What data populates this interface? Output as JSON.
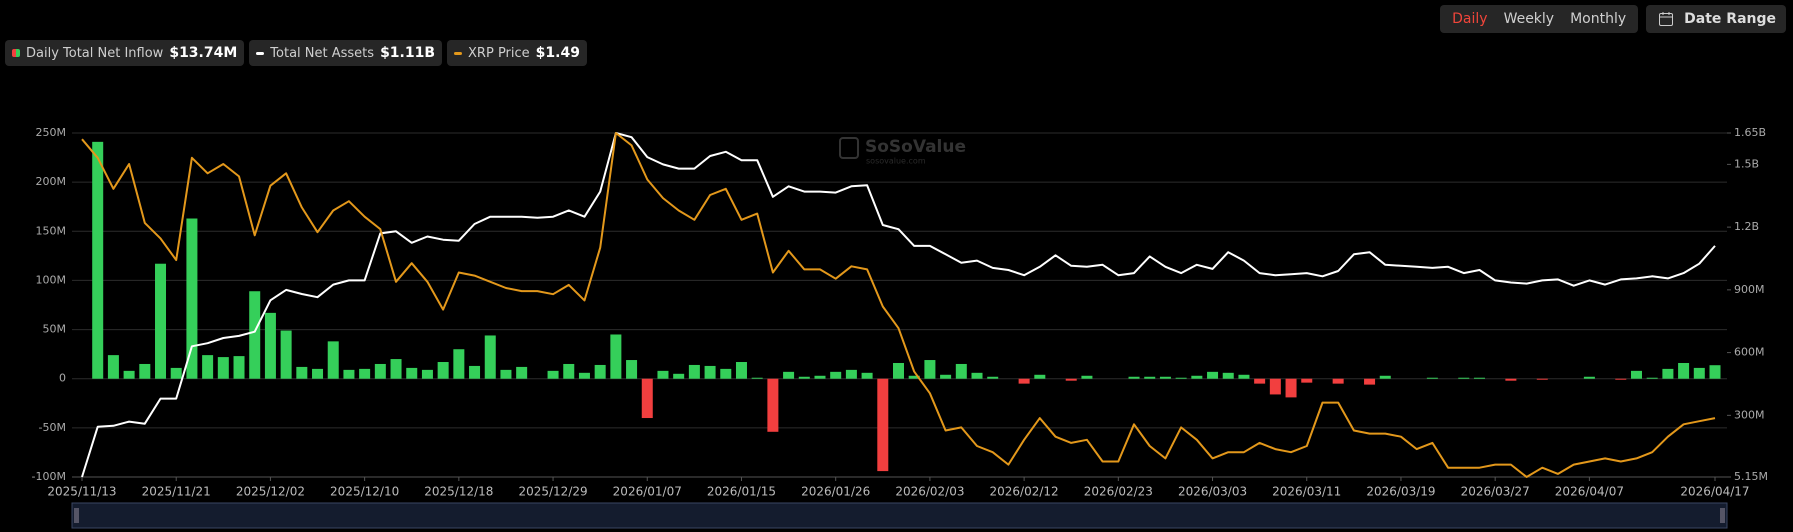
{
  "controls": {
    "periods": [
      "Daily",
      "Weekly",
      "Monthly"
    ],
    "active": "Daily",
    "date_range": "Date Range"
  },
  "chart_data": {
    "type": "combo",
    "watermark": "SoSoValue",
    "watermark_sub": "sosovalue.com",
    "categories": [
      "2025/11/13",
      null,
      null,
      null,
      null,
      null,
      "2025/11/21",
      null,
      null,
      null,
      null,
      null,
      "2025/12/02",
      null,
      null,
      null,
      null,
      null,
      "2025/12/10",
      null,
      null,
      null,
      null,
      null,
      "2025/12/18",
      null,
      null,
      null,
      null,
      null,
      "2025/12/29",
      null,
      null,
      null,
      null,
      null,
      "2026/01/07",
      null,
      null,
      null,
      null,
      null,
      "2026/01/15",
      null,
      null,
      null,
      null,
      null,
      "2026/01/26",
      null,
      null,
      null,
      null,
      null,
      "2026/02/03",
      null,
      null,
      null,
      null,
      null,
      "2026/02/12",
      null,
      null,
      null,
      null,
      null,
      "2026/02/23",
      null,
      null,
      null,
      null,
      null,
      "2026/03/03",
      null,
      null,
      null,
      null,
      null,
      "2026/03/11",
      null,
      null,
      null,
      null,
      null,
      "2026/03/19",
      null,
      null,
      null,
      null,
      null,
      "2026/03/27",
      null,
      null,
      null,
      null,
      null,
      "2026/04/07",
      null,
      null,
      null,
      null,
      null,
      null,
      null,
      "2026/04/17"
    ],
    "ylim": [
      -100,
      250
    ],
    "yticks": [
      {
        "value": 250,
        "label": "250M"
      },
      {
        "value": 200,
        "label": "200M"
      },
      {
        "value": 150,
        "label": "150M"
      },
      {
        "value": 100,
        "label": "100M"
      },
      {
        "value": 50,
        "label": "50M"
      },
      0,
      {
        "value": -50,
        "label": "-50M"
      },
      {
        "value": -100,
        "label": "-100M"
      }
    ],
    "y2lim": [
      5.15,
      1650
    ],
    "y2ticks": [
      {
        "value": 1650,
        "label": "1.65B"
      },
      {
        "value": 1500,
        "label": "1.5B"
      },
      {
        "value": 1200,
        "label": "1.2B"
      },
      {
        "value": 900,
        "label": "900M"
      },
      {
        "value": 600,
        "label": "600M"
      },
      {
        "value": 300,
        "label": "300M"
      },
      {
        "value": 5.15,
        "label": "5.15M"
      }
    ],
    "y3lim": [
      1.3,
      2.41
    ],
    "grid": true,
    "series": [
      {
        "name": "Daily Total Net Inflow",
        "legend_value": "$13.74M",
        "type": "bar",
        "color": "#35cf5a",
        "negative_color": "#f23f3f",
        "values": [
          null,
          241,
          24,
          8,
          15,
          117,
          11,
          163,
          24,
          22,
          23,
          89,
          67,
          49,
          12,
          10,
          38,
          9,
          10,
          15,
          20,
          11,
          9,
          17,
          30,
          13,
          44,
          9,
          12,
          0,
          8,
          15,
          6,
          14,
          45,
          19,
          -40,
          8,
          5,
          14,
          13,
          10,
          17,
          1,
          -54,
          7,
          2,
          3,
          7,
          9,
          6,
          -94,
          16,
          3,
          19,
          4,
          15,
          6,
          2,
          0,
          -5,
          4,
          0,
          -2,
          3,
          0,
          0,
          2,
          2,
          2,
          1,
          3,
          7,
          6,
          4,
          -5,
          -16,
          -19,
          -4,
          0,
          -5,
          0,
          -6,
          3,
          0,
          0,
          1,
          0,
          1,
          1,
          0,
          -2,
          0,
          -1,
          0,
          0,
          2,
          0,
          -1,
          8,
          1,
          10,
          16,
          11,
          13.74
        ]
      },
      {
        "name": "Total Net Assets",
        "legend_value": "$1.11B",
        "type": "line",
        "axis": "y2",
        "color": "#ffffff",
        "values": [
          5.15,
          245,
          250,
          270,
          260,
          380,
          380,
          630,
          645,
          670,
          680,
          700,
          850,
          900,
          880,
          865,
          925,
          945,
          945,
          1170,
          1180,
          1125,
          1155,
          1140,
          1135,
          1215,
          1250,
          1250,
          1250,
          1245,
          1250,
          1280,
          1250,
          1370,
          1650,
          1630,
          1535,
          1500,
          1480,
          1480,
          1540,
          1560,
          1520,
          1520,
          1345,
          1395,
          1370,
          1370,
          1365,
          1395,
          1400,
          1210,
          1190,
          1110,
          1110,
          1070,
          1030,
          1040,
          1005,
          995,
          970,
          1010,
          1065,
          1015,
          1010,
          1020,
          970,
          980,
          1060,
          1010,
          980,
          1020,
          1000,
          1080,
          1040,
          980,
          970,
          975,
          980,
          965,
          990,
          1070,
          1080,
          1020,
          1015,
          1010,
          1005,
          1010,
          980,
          995,
          945,
          935,
          930,
          945,
          950,
          920,
          945,
          925,
          950,
          955,
          965,
          955,
          980,
          1025,
          1110
        ]
      },
      {
        "name": "XRP Price",
        "legend_value": "$1.49",
        "type": "line",
        "axis": "y3",
        "color": "#e3981b",
        "values": [
          2.39,
          2.33,
          2.23,
          2.31,
          2.12,
          2.07,
          2.0,
          2.33,
          2.28,
          2.31,
          2.27,
          2.08,
          2.24,
          2.28,
          2.17,
          2.09,
          2.16,
          2.19,
          2.14,
          2.1,
          1.93,
          1.99,
          1.93,
          1.84,
          1.96,
          1.95,
          1.93,
          1.91,
          1.9,
          1.9,
          1.89,
          1.92,
          1.87,
          2.04,
          2.41,
          2.37,
          2.26,
          2.2,
          2.16,
          2.13,
          2.21,
          2.23,
          2.13,
          2.15,
          1.96,
          2.03,
          1.97,
          1.97,
          1.94,
          1.98,
          1.97,
          1.85,
          1.78,
          1.64,
          1.57,
          1.45,
          1.46,
          1.4,
          1.38,
          1.34,
          1.42,
          1.49,
          1.43,
          1.41,
          1.42,
          1.35,
          1.35,
          1.47,
          1.4,
          1.36,
          1.46,
          1.42,
          1.36,
          1.38,
          1.38,
          1.41,
          1.39,
          1.38,
          1.4,
          1.54,
          1.54,
          1.45,
          1.44,
          1.44,
          1.43,
          1.39,
          1.41,
          1.33,
          1.33,
          1.33,
          1.34,
          1.34,
          1.3,
          1.33,
          1.31,
          1.34,
          1.35,
          1.36,
          1.35,
          1.36,
          1.38,
          1.43,
          1.47,
          1.48,
          1.49
        ]
      }
    ]
  }
}
